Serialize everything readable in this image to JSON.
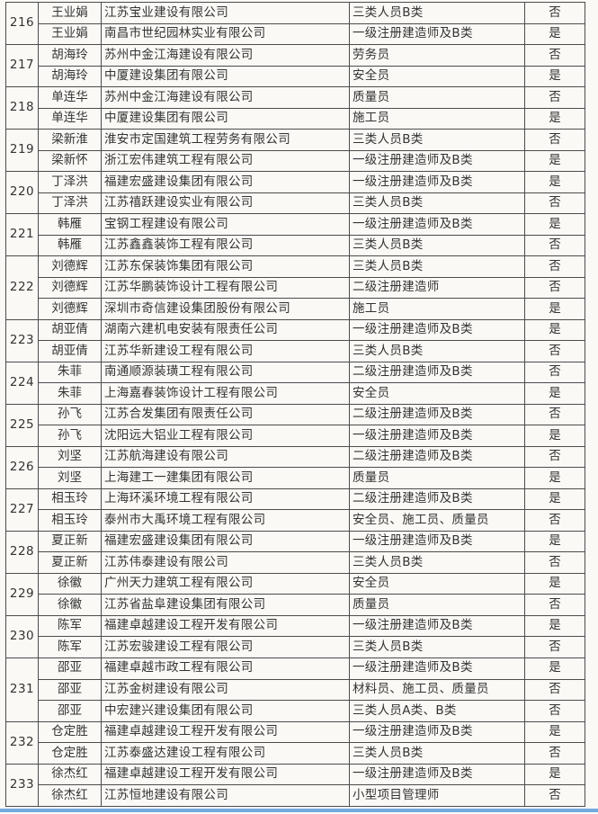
{
  "colors": {
    "page_bg": "#faf9f6",
    "table_border": "#4c4c4c",
    "text": "#333333",
    "bottom_divider": "#74a9de"
  },
  "table": {
    "groups": [
      {
        "no": "216",
        "rows": [
          {
            "name": "王业娟",
            "company": "江苏宝业建设有限公司",
            "cert": "三类人员B类",
            "status": "否"
          },
          {
            "name": "王业娟",
            "company": "南昌市世纪园林实业有限公司",
            "cert": "一级注册建造师及B类",
            "status": "是"
          }
        ]
      },
      {
        "no": "217",
        "rows": [
          {
            "name": "胡海玲",
            "company": "苏州中金江海建设有限公司",
            "cert": "劳务员",
            "status": "否"
          },
          {
            "name": "胡海玲",
            "company": "中厦建设集团有限公司",
            "cert": "安全员",
            "status": "是"
          }
        ]
      },
      {
        "no": "218",
        "rows": [
          {
            "name": "单连华",
            "company": "苏州中金江海建设有限公司",
            "cert": "质量员",
            "status": "否"
          },
          {
            "name": "单连华",
            "company": "中厦建设集团有限公司",
            "cert": "施工员",
            "status": "是"
          }
        ]
      },
      {
        "no": "219",
        "rows": [
          {
            "name": "梁新淮",
            "company": "淮安市定国建筑工程劳务有限公司",
            "cert": "三类人员B类",
            "status": "否"
          },
          {
            "name": "梁新怀",
            "company": "浙江宏伟建筑工程有限公司",
            "cert": "一级注册建造师及B类",
            "status": "是"
          }
        ]
      },
      {
        "no": "220",
        "rows": [
          {
            "name": "丁泽洪",
            "company": "福建宏盛建设集团有限公司",
            "cert": "一级注册建造师及B类",
            "status": "是"
          },
          {
            "name": "丁泽洪",
            "company": "江苏禧跃建设实业有限公司",
            "cert": "三类人员B类",
            "status": "否"
          }
        ]
      },
      {
        "no": "221",
        "rows": [
          {
            "name": "韩雁",
            "company": "宝钢工程建设有限公司",
            "cert": "一级注册建造师及B类",
            "status": "是"
          },
          {
            "name": "韩雁",
            "company": "江苏鑫鑫装饰工程有限公司",
            "cert": "三类人员B类",
            "status": "否"
          }
        ]
      },
      {
        "no": "222",
        "rows": [
          {
            "name": "刘德辉",
            "company": "江苏东保装饰集团有限公司",
            "cert": "三类人员B类",
            "status": "否"
          },
          {
            "name": "刘德辉",
            "company": "江苏华鹏装饰设计工程有限公司",
            "cert": "二级注册建造师",
            "status": "否"
          },
          {
            "name": "刘德辉",
            "company": "深圳市奇信建设集团股份有限公司",
            "cert": "施工员",
            "status": "是"
          }
        ]
      },
      {
        "no": "223",
        "rows": [
          {
            "name": "胡亚倩",
            "company": "湖南六建机电安装有限责任公司",
            "cert": "一级注册建造师及B类",
            "status": "是"
          },
          {
            "name": "胡亚倩",
            "company": "江苏华新建设工程有限公司",
            "cert": "三类人员B类",
            "status": "否"
          }
        ]
      },
      {
        "no": "224",
        "rows": [
          {
            "name": "朱菲",
            "company": "南通顺源装璜工程有限公司",
            "cert": "二级注册建造师及B类",
            "status": "否"
          },
          {
            "name": "朱菲",
            "company": "上海嘉春装饰设计工程有限公司",
            "cert": "安全员",
            "status": "是"
          }
        ]
      },
      {
        "no": "225",
        "rows": [
          {
            "name": "孙飞",
            "company": "江苏合发集团有限责任公司",
            "cert": "二级注册建造师及B类",
            "status": "否"
          },
          {
            "name": "孙飞",
            "company": "沈阳远大铝业工程有限公司",
            "cert": "一级注册建造师及B类",
            "status": "是"
          }
        ]
      },
      {
        "no": "226",
        "rows": [
          {
            "name": "刘坚",
            "company": "江苏航海建设有限公司",
            "cert": "二级注册建造师及B类",
            "status": "否"
          },
          {
            "name": "刘坚",
            "company": "上海建工一建集团有限公司",
            "cert": "质量员",
            "status": "是"
          }
        ]
      },
      {
        "no": "227",
        "rows": [
          {
            "name": "相玉玲",
            "company": "上海环溪环境工程有限公司",
            "cert": "二级注册建造师及B类",
            "status": "是"
          },
          {
            "name": "相玉玲",
            "company": "泰州市大禹环境工程有限公司",
            "cert": "安全员、施工员、质量员",
            "status": "否"
          }
        ]
      },
      {
        "no": "228",
        "rows": [
          {
            "name": "夏正新",
            "company": "福建宏盛建设集团有限公司",
            "cert": "一级注册建造师及B类",
            "status": "是"
          },
          {
            "name": "夏正新",
            "company": "江苏伟泰建设有限公司",
            "cert": "三类人员B类",
            "status": "否"
          }
        ]
      },
      {
        "no": "229",
        "rows": [
          {
            "name": "徐徽",
            "company": "广州天力建筑工程有限公司",
            "cert": "安全员",
            "status": "是"
          },
          {
            "name": "徐徽",
            "company": "江苏省盐阜建设集团有限公司",
            "cert": "质量员",
            "status": "否"
          }
        ]
      },
      {
        "no": "230",
        "rows": [
          {
            "name": "陈军",
            "company": "福建卓越建设工程开发有限公司",
            "cert": "一级注册建造师及B类",
            "status": "是"
          },
          {
            "name": "陈军",
            "company": "江苏宏骏建设工程有限公司",
            "cert": "三类人员B类",
            "status": "否"
          }
        ]
      },
      {
        "no": "231",
        "rows": [
          {
            "name": "邵亚",
            "company": "福建卓越市政工程有限公司",
            "cert": "一级注册建造师及B类",
            "status": "是"
          },
          {
            "name": "邵亚",
            "company": "江苏金树建设有限公司",
            "cert": "材料员、施工员、质量员",
            "status": "否"
          },
          {
            "name": "邵亚",
            "company": "中宏建兴建设集团有限公司",
            "cert": "三类人员A类、B类",
            "status": "否"
          }
        ]
      },
      {
        "no": "232",
        "rows": [
          {
            "name": "仓定胜",
            "company": "福建卓越建设工程开发有限公司",
            "cert": "一级注册建造师及B类",
            "status": "是"
          },
          {
            "name": "仓定胜",
            "company": "江苏泰盛达建设工程有限公司",
            "cert": "三类人员B类",
            "status": "否"
          }
        ]
      },
      {
        "no": "233",
        "rows": [
          {
            "name": "徐杰红",
            "company": "福建卓越建设工程开发有限公司",
            "cert": "一级注册建造师及B类",
            "status": "是"
          },
          {
            "name": "徐杰红",
            "company": "江苏恒地建设有限公司",
            "cert": "小型项目管理师",
            "status": "否"
          }
        ]
      }
    ]
  }
}
